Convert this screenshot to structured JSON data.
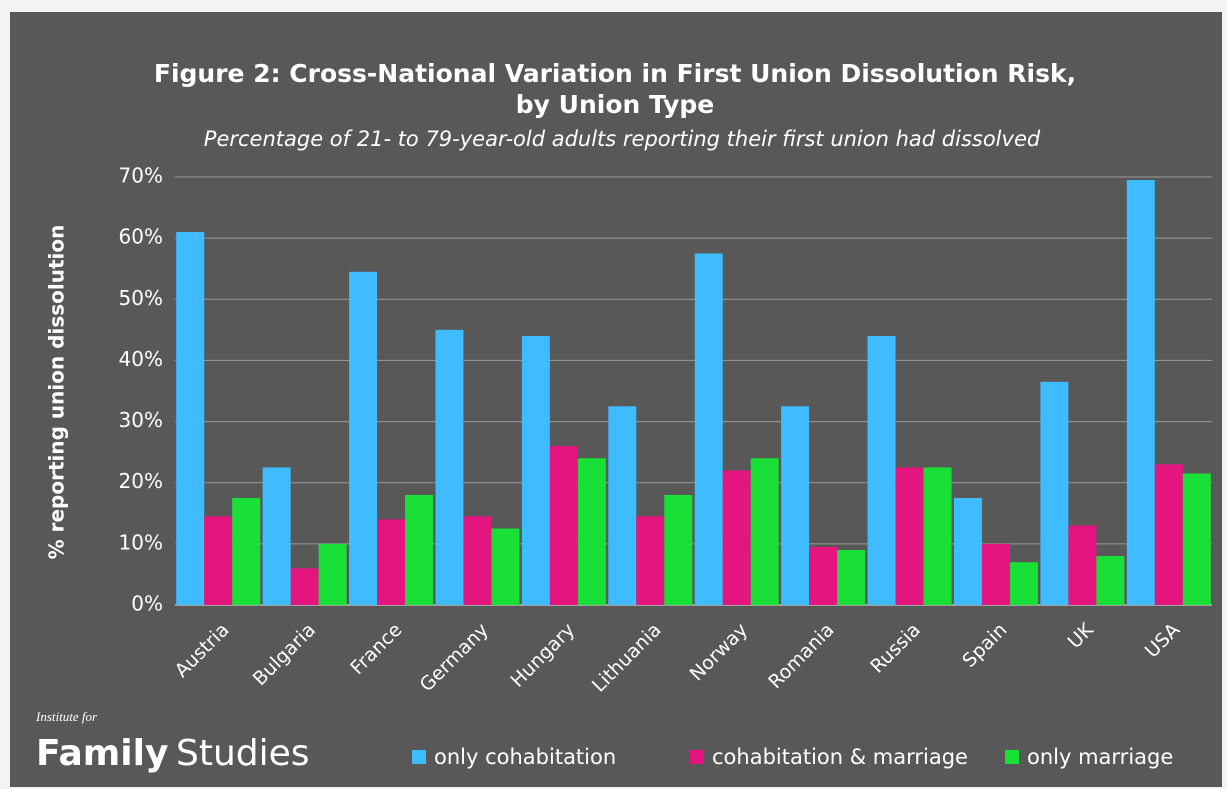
{
  "chart_data": {
    "type": "bar",
    "title": "Figure 2: Cross-National Variation in First Union Dissolution Risk,",
    "title_line2": "by Union Type",
    "subtitle": "Percentage of 21- to 79-year-old adults reporting their first union had dissolved",
    "y_label": "% reporting union dissolution",
    "categories": [
      "Austria",
      "Bulgaria",
      "France",
      "Germany",
      "Hungary",
      "Lithuania",
      "Norway",
      "Romania",
      "Russia",
      "Spain",
      "UK",
      "USA"
    ],
    "series": [
      {
        "name": "only cohabitation",
        "color": "#3fbcff",
        "values": [
          61,
          22.5,
          54.5,
          45,
          44,
          32.5,
          57.5,
          32.5,
          44,
          17.5,
          36.5,
          69.5
        ]
      },
      {
        "name": "cohabitation & marriage",
        "color": "#e5157f",
        "values": [
          14.5,
          6,
          14,
          14.5,
          26,
          14.5,
          22,
          9.5,
          22.5,
          10,
          13,
          23
        ]
      },
      {
        "name": "only marriage",
        "color": "#19e037",
        "values": [
          17.5,
          10,
          18,
          12.5,
          24,
          18,
          24,
          9,
          22.5,
          7,
          8,
          21.5
        ]
      }
    ],
    "ylim": [
      0,
      70
    ],
    "yticks": [
      {
        "value": 0,
        "label": "0%"
      },
      {
        "value": 10,
        "label": "10%"
      },
      {
        "value": 20,
        "label": "20%"
      },
      {
        "value": 30,
        "label": "30%"
      },
      {
        "value": 40,
        "label": "40%"
      },
      {
        "value": 50,
        "label": "50%"
      },
      {
        "value": 60,
        "label": "60%"
      },
      {
        "value": 70,
        "label": "70%"
      }
    ],
    "grid": true
  },
  "logo": {
    "line1": "Institute for",
    "word1": "Family",
    "word2": "Studies"
  }
}
